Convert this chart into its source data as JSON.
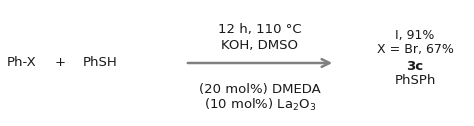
{
  "background_color": "#ffffff",
  "reactant1": "Ph-X",
  "plus": "+",
  "reactant2": "PhSH",
  "product": "PhSPh",
  "product_label": "3c",
  "condition_top1_text": "(10 mol%) La$_2$O$_3$",
  "condition_top2_text": "(20 mol%) DMEDA",
  "condition_bot1": "KOH, DMSO",
  "condition_bot2": "12 h, 110 °C",
  "yield_line1": "X = Br, 67%",
  "yield_line2": "I, 91%",
  "arrow_color": "#808080",
  "text_color": "#1a1a1a",
  "fontsize": 9.5
}
